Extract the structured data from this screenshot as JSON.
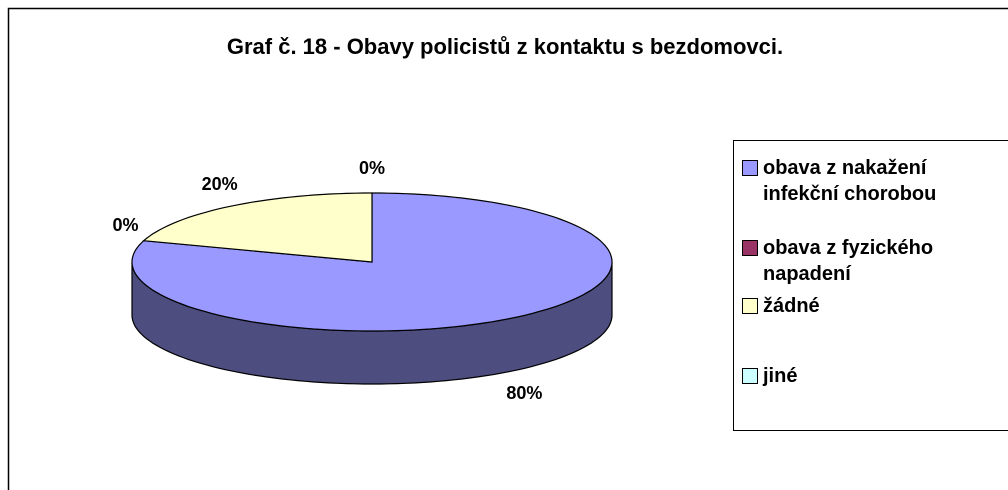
{
  "chart_data": {
    "type": "pie",
    "title": "Graf č. 18 - Obavy policistů z kontaktu s bezdomovci.",
    "categories": [
      "obava z nakažení infekční chorobou",
      "obava z fyzického napadení",
      "žádné",
      "jiné"
    ],
    "values": [
      80,
      0,
      20,
      0
    ],
    "value_labels": [
      "80%",
      "0%",
      "20%",
      "0%"
    ],
    "colors": [
      "#9999ff",
      "#993366",
      "#ffffcc",
      "#ccffff"
    ],
    "legend": "right"
  }
}
